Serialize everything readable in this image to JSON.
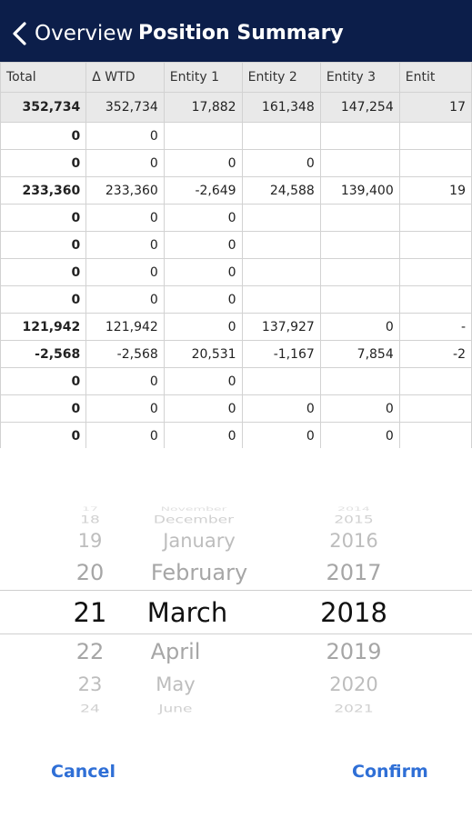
{
  "nav": {
    "back_label": "Overview",
    "title": "Position Summary"
  },
  "table": {
    "headers": [
      "Total",
      "Δ WTD",
      "Entity 1",
      "Entity 2",
      "Entity 3",
      "Entit"
    ],
    "rows": [
      [
        "352,734",
        "352,734",
        "17,882",
        "161,348",
        "147,254",
        "17"
      ],
      [
        "0",
        "0",
        "",
        "",
        "",
        ""
      ],
      [
        "0",
        "0",
        "0",
        "0",
        "",
        ""
      ],
      [
        "233,360",
        "233,360",
        "-2,649",
        "24,588",
        "139,400",
        "19"
      ],
      [
        "0",
        "0",
        "0",
        "",
        "",
        ""
      ],
      [
        "0",
        "0",
        "0",
        "",
        "",
        ""
      ],
      [
        "0",
        "0",
        "0",
        "",
        "",
        ""
      ],
      [
        "0",
        "0",
        "0",
        "",
        "",
        ""
      ],
      [
        "121,942",
        "121,942",
        "0",
        "137,927",
        "0",
        "-"
      ],
      [
        "-2,568",
        "-2,568",
        "20,531",
        "-1,167",
        "7,854",
        "-2"
      ],
      [
        "0",
        "0",
        "0",
        "",
        "",
        ""
      ],
      [
        "0",
        "0",
        "0",
        "0",
        "0",
        ""
      ],
      [
        "0",
        "0",
        "0",
        "0",
        "0",
        ""
      ]
    ]
  },
  "picker": {
    "day": {
      "above": [
        "17",
        "18",
        "19",
        "20"
      ],
      "selected": "21",
      "below": [
        "22",
        "23",
        "24"
      ]
    },
    "month": {
      "above": [
        "November",
        "December",
        "January",
        "February"
      ],
      "selected": "March",
      "below": [
        "April",
        "May",
        "June"
      ]
    },
    "year": {
      "above": [
        "2014",
        "2015",
        "2016",
        "2017"
      ],
      "selected": "2018",
      "below": [
        "2019",
        "2020",
        "2021"
      ]
    }
  },
  "buttons": {
    "cancel": "Cancel",
    "confirm": "Confirm"
  },
  "colors": {
    "navbar": "#0c1e4a",
    "accent": "#2f6fd6",
    "header_bg": "#e9e9e9"
  },
  "icons": {
    "back": "chevron-left-icon"
  }
}
